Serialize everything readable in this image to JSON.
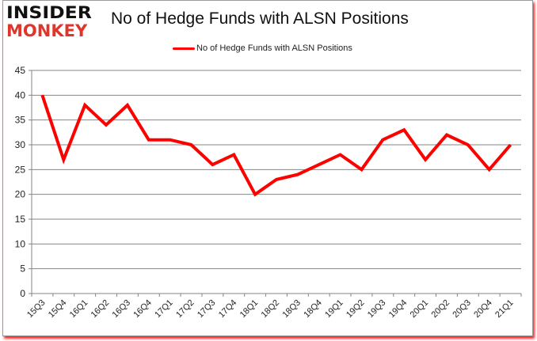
{
  "logo": {
    "line1": "INSIDER",
    "line2": "MONKEY"
  },
  "header": {
    "title": "No of Hedge Funds with ALSN Positions"
  },
  "legend": {
    "label": "No of Hedge Funds with ALSN Positions",
    "color": "#ff0000"
  },
  "chart_data": {
    "type": "line",
    "title": "No of Hedge Funds with ALSN Positions",
    "xlabel": "",
    "ylabel": "",
    "ylim": [
      0,
      45
    ],
    "yticks": [
      0,
      5,
      10,
      15,
      20,
      25,
      30,
      35,
      40,
      45
    ],
    "grid": true,
    "legend_position": "top",
    "categories": [
      "15Q3",
      "15Q4",
      "16Q1",
      "16Q2",
      "16Q3",
      "16Q4",
      "17Q1",
      "17Q2",
      "17Q3",
      "17Q4",
      "18Q1",
      "18Q2",
      "18Q3",
      "18Q4",
      "19Q1",
      "19Q2",
      "19Q3",
      "19Q4",
      "20Q1",
      "20Q2",
      "20Q3",
      "20Q4",
      "21Q1"
    ],
    "series": [
      {
        "name": "No of Hedge Funds with ALSN Positions",
        "color": "#ff0000",
        "values": [
          40,
          27,
          38,
          34,
          38,
          31,
          31,
          30,
          26,
          28,
          20,
          23,
          24,
          26,
          28,
          25,
          31,
          33,
          27,
          32,
          30,
          25,
          30
        ]
      }
    ]
  }
}
